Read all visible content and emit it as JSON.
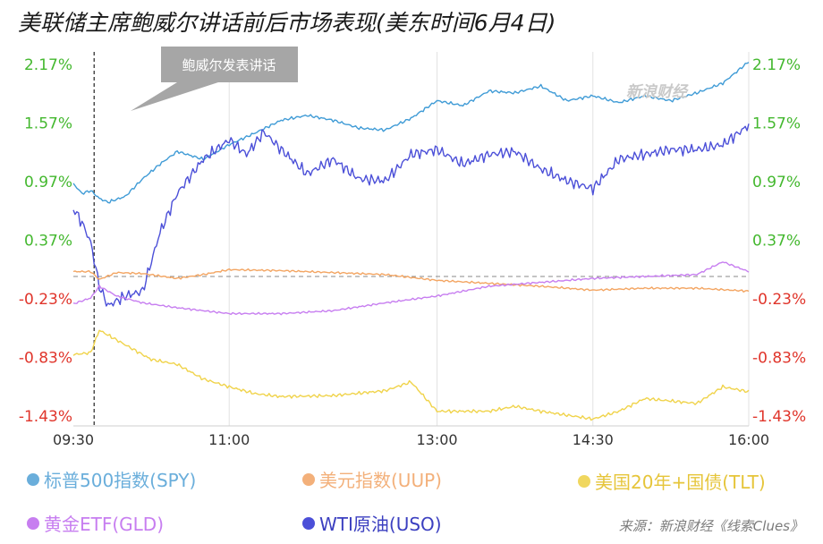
{
  "title": "美联储主席鲍威尔讲话前后市场表现(美东时间6月4日)",
  "annotation": "鲍威尔发表讲话",
  "watermark": "新浪财经",
  "source": "来源：新浪财经《线索Clues》",
  "colors": {
    "positive": "#44b82f",
    "negative": "#e0352b",
    "grid": "#e2e2e2",
    "zero_line": "#8a8a8a",
    "annotation_bg": "#a6a6a6"
  },
  "chart_data": {
    "type": "line",
    "x_ticks": [
      "09:30",
      "11:00",
      "13:00",
      "14:30",
      "16:00"
    ],
    "y_ticks": [
      "2.17%",
      "1.57%",
      "0.97%",
      "0.37%",
      "-0.23%",
      "-0.83%",
      "-1.43%"
    ],
    "y_tick_values": [
      2.17,
      1.57,
      0.97,
      0.37,
      -0.23,
      -0.83,
      -1.43
    ],
    "ylim": [
      -1.53,
      2.3
    ],
    "x_range": [
      "09:30",
      "16:00"
    ],
    "event_time": "09:42",
    "series": [
      {
        "name": "标普500指数(SPY)",
        "color": "#3f9bd6",
        "x": [
          "09:30",
          "09:35",
          "09:40",
          "09:45",
          "09:50",
          "10:00",
          "10:10",
          "10:20",
          "10:30",
          "10:45",
          "11:00",
          "11:15",
          "11:30",
          "11:45",
          "12:00",
          "12:15",
          "12:30",
          "12:45",
          "13:00",
          "13:15",
          "13:30",
          "13:45",
          "14:00",
          "14:15",
          "14:30",
          "14:45",
          "15:00",
          "15:15",
          "15:30",
          "15:45",
          "16:00"
        ],
        "values": [
          0.95,
          0.85,
          0.88,
          0.8,
          0.76,
          0.82,
          1.0,
          1.15,
          1.28,
          1.2,
          1.35,
          1.47,
          1.6,
          1.65,
          1.6,
          1.52,
          1.5,
          1.62,
          1.8,
          1.75,
          1.9,
          1.88,
          1.95,
          1.8,
          1.85,
          1.78,
          1.85,
          1.8,
          1.88,
          1.98,
          2.2
        ]
      },
      {
        "name": "WTI原油(USO)",
        "color": "#4b4fd8",
        "x": [
          "09:30",
          "09:35",
          "09:40",
          "09:45",
          "09:50",
          "10:00",
          "10:10",
          "10:20",
          "10:30",
          "10:45",
          "11:00",
          "11:10",
          "11:20",
          "11:30",
          "11:45",
          "12:00",
          "12:15",
          "12:30",
          "12:45",
          "13:00",
          "13:15",
          "13:30",
          "13:45",
          "14:00",
          "14:15",
          "14:30",
          "14:45",
          "15:00",
          "15:15",
          "15:30",
          "15:45",
          "16:00"
        ],
        "values": [
          0.7,
          0.55,
          0.35,
          -0.1,
          -0.3,
          -0.2,
          -0.15,
          0.45,
          0.85,
          1.2,
          1.4,
          1.25,
          1.48,
          1.3,
          1.05,
          1.2,
          1.0,
          0.98,
          1.25,
          1.3,
          1.15,
          1.25,
          1.28,
          1.1,
          0.98,
          0.9,
          1.2,
          1.25,
          1.3,
          1.3,
          1.35,
          1.55
        ]
      },
      {
        "name": "美元指数(UUP)",
        "color": "#f3a562",
        "x": [
          "09:30",
          "09:40",
          "09:45",
          "09:55",
          "10:10",
          "10:30",
          "10:45",
          "11:00",
          "11:30",
          "12:00",
          "12:30",
          "13:00",
          "13:30",
          "14:00",
          "14:30",
          "15:00",
          "15:30",
          "16:00"
        ],
        "values": [
          0.05,
          0.05,
          -0.03,
          0.04,
          0.03,
          -0.02,
          0.02,
          0.07,
          0.06,
          0.04,
          0.02,
          -0.04,
          -0.07,
          -0.1,
          -0.14,
          -0.12,
          -0.12,
          -0.15
        ]
      },
      {
        "name": "黄金ETF(GLD)",
        "color": "#c77ef0",
        "x": [
          "09:30",
          "09:40",
          "09:45",
          "09:55",
          "10:10",
          "10:30",
          "10:45",
          "11:00",
          "11:30",
          "12:00",
          "12:30",
          "13:00",
          "13:30",
          "14:00",
          "14:30",
          "15:00",
          "15:30",
          "15:45",
          "16:00"
        ],
        "values": [
          -0.28,
          -0.22,
          -0.1,
          -0.2,
          -0.27,
          -0.32,
          -0.35,
          -0.38,
          -0.38,
          -0.35,
          -0.27,
          -0.2,
          -0.1,
          -0.06,
          -0.02,
          0.0,
          0.02,
          0.15,
          0.05
        ]
      },
      {
        "name": "美国20年+国债(TLT)",
        "color": "#f0d34a",
        "x": [
          "09:30",
          "09:40",
          "09:45",
          "10:00",
          "10:15",
          "10:30",
          "10:45",
          "11:00",
          "11:15",
          "11:30",
          "12:00",
          "12:30",
          "12:45",
          "13:00",
          "13:30",
          "13:45",
          "14:00",
          "14:30",
          "14:45",
          "15:00",
          "15:30",
          "15:45",
          "16:00"
        ],
        "values": [
          -0.8,
          -0.78,
          -0.55,
          -0.7,
          -0.85,
          -0.9,
          -1.05,
          -1.13,
          -1.2,
          -1.23,
          -1.22,
          -1.17,
          -1.08,
          -1.38,
          -1.38,
          -1.33,
          -1.38,
          -1.46,
          -1.38,
          -1.25,
          -1.3,
          -1.13,
          -1.18
        ]
      }
    ]
  }
}
